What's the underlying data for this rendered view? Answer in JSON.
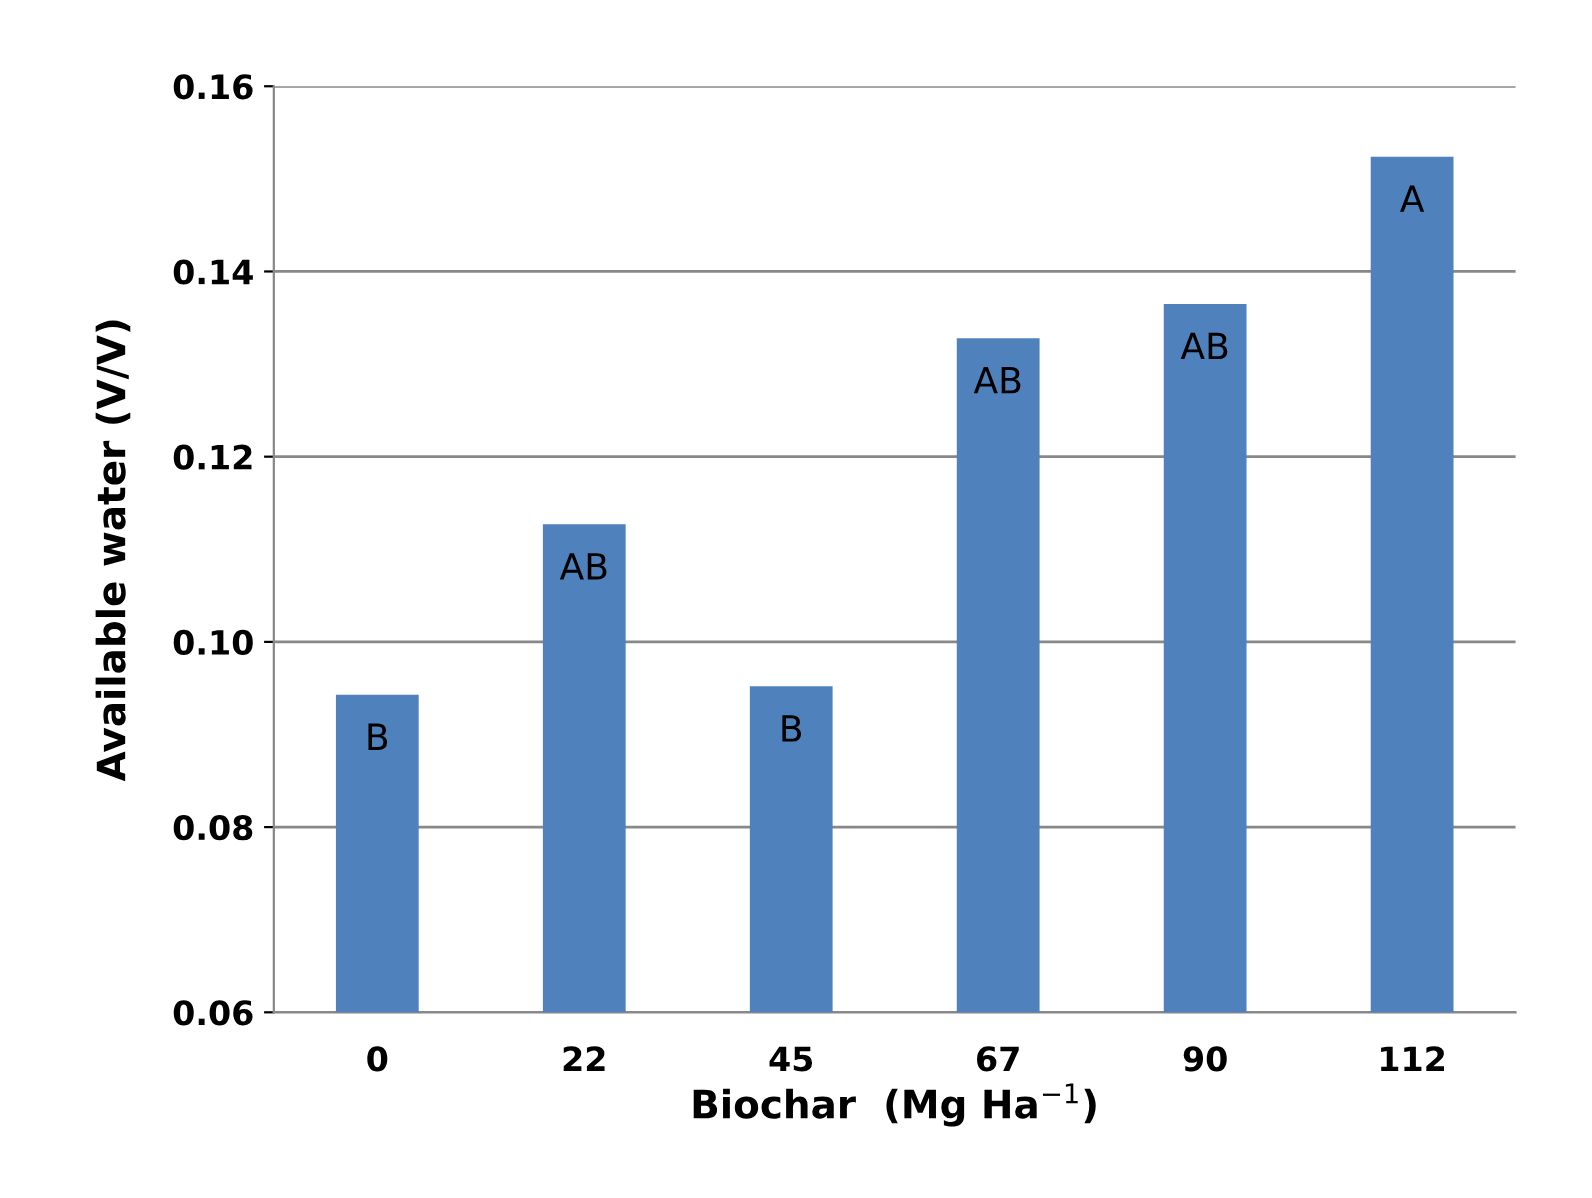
{
  "chart_data": {
    "type": "bar",
    "xlabel": "Biochar  (Mg Ha$^{−1}$)",
    "ylabel": "Available water (V/V)",
    "categories": [
      "0",
      "22",
      "45",
      "67",
      "90",
      "112"
    ],
    "values": [
      0.0943,
      0.1127,
      0.0952,
      0.1328,
      0.1365,
      0.1524
    ],
    "color": "#4f81bd",
    "ylim": [
      0.06,
      0.16
    ],
    "yticks": [
      {
        "value": 0.06,
        "label": "0.06"
      },
      {
        "value": 0.08,
        "label": "0.08"
      },
      {
        "value": 0.1,
        "label": "0.10"
      },
      {
        "value": 0.12,
        "label": "0.12"
      },
      {
        "value": 0.14,
        "label": "0.14"
      },
      {
        "value": 0.16,
        "label": "0.16"
      }
    ],
    "grid": "y",
    "annotations": [
      {
        "text": "B",
        "x": "0",
        "y": 0.0943
      },
      {
        "text": "AB",
        "x": "22",
        "y": 0.1127
      },
      {
        "text": "B",
        "x": "45",
        "y": 0.0952
      },
      {
        "text": "AB",
        "x": "67",
        "y": 0.1328
      },
      {
        "text": "AB",
        "x": "90",
        "y": 0.1365
      },
      {
        "text": "A",
        "x": "112",
        "y": 0.1524
      }
    ]
  }
}
